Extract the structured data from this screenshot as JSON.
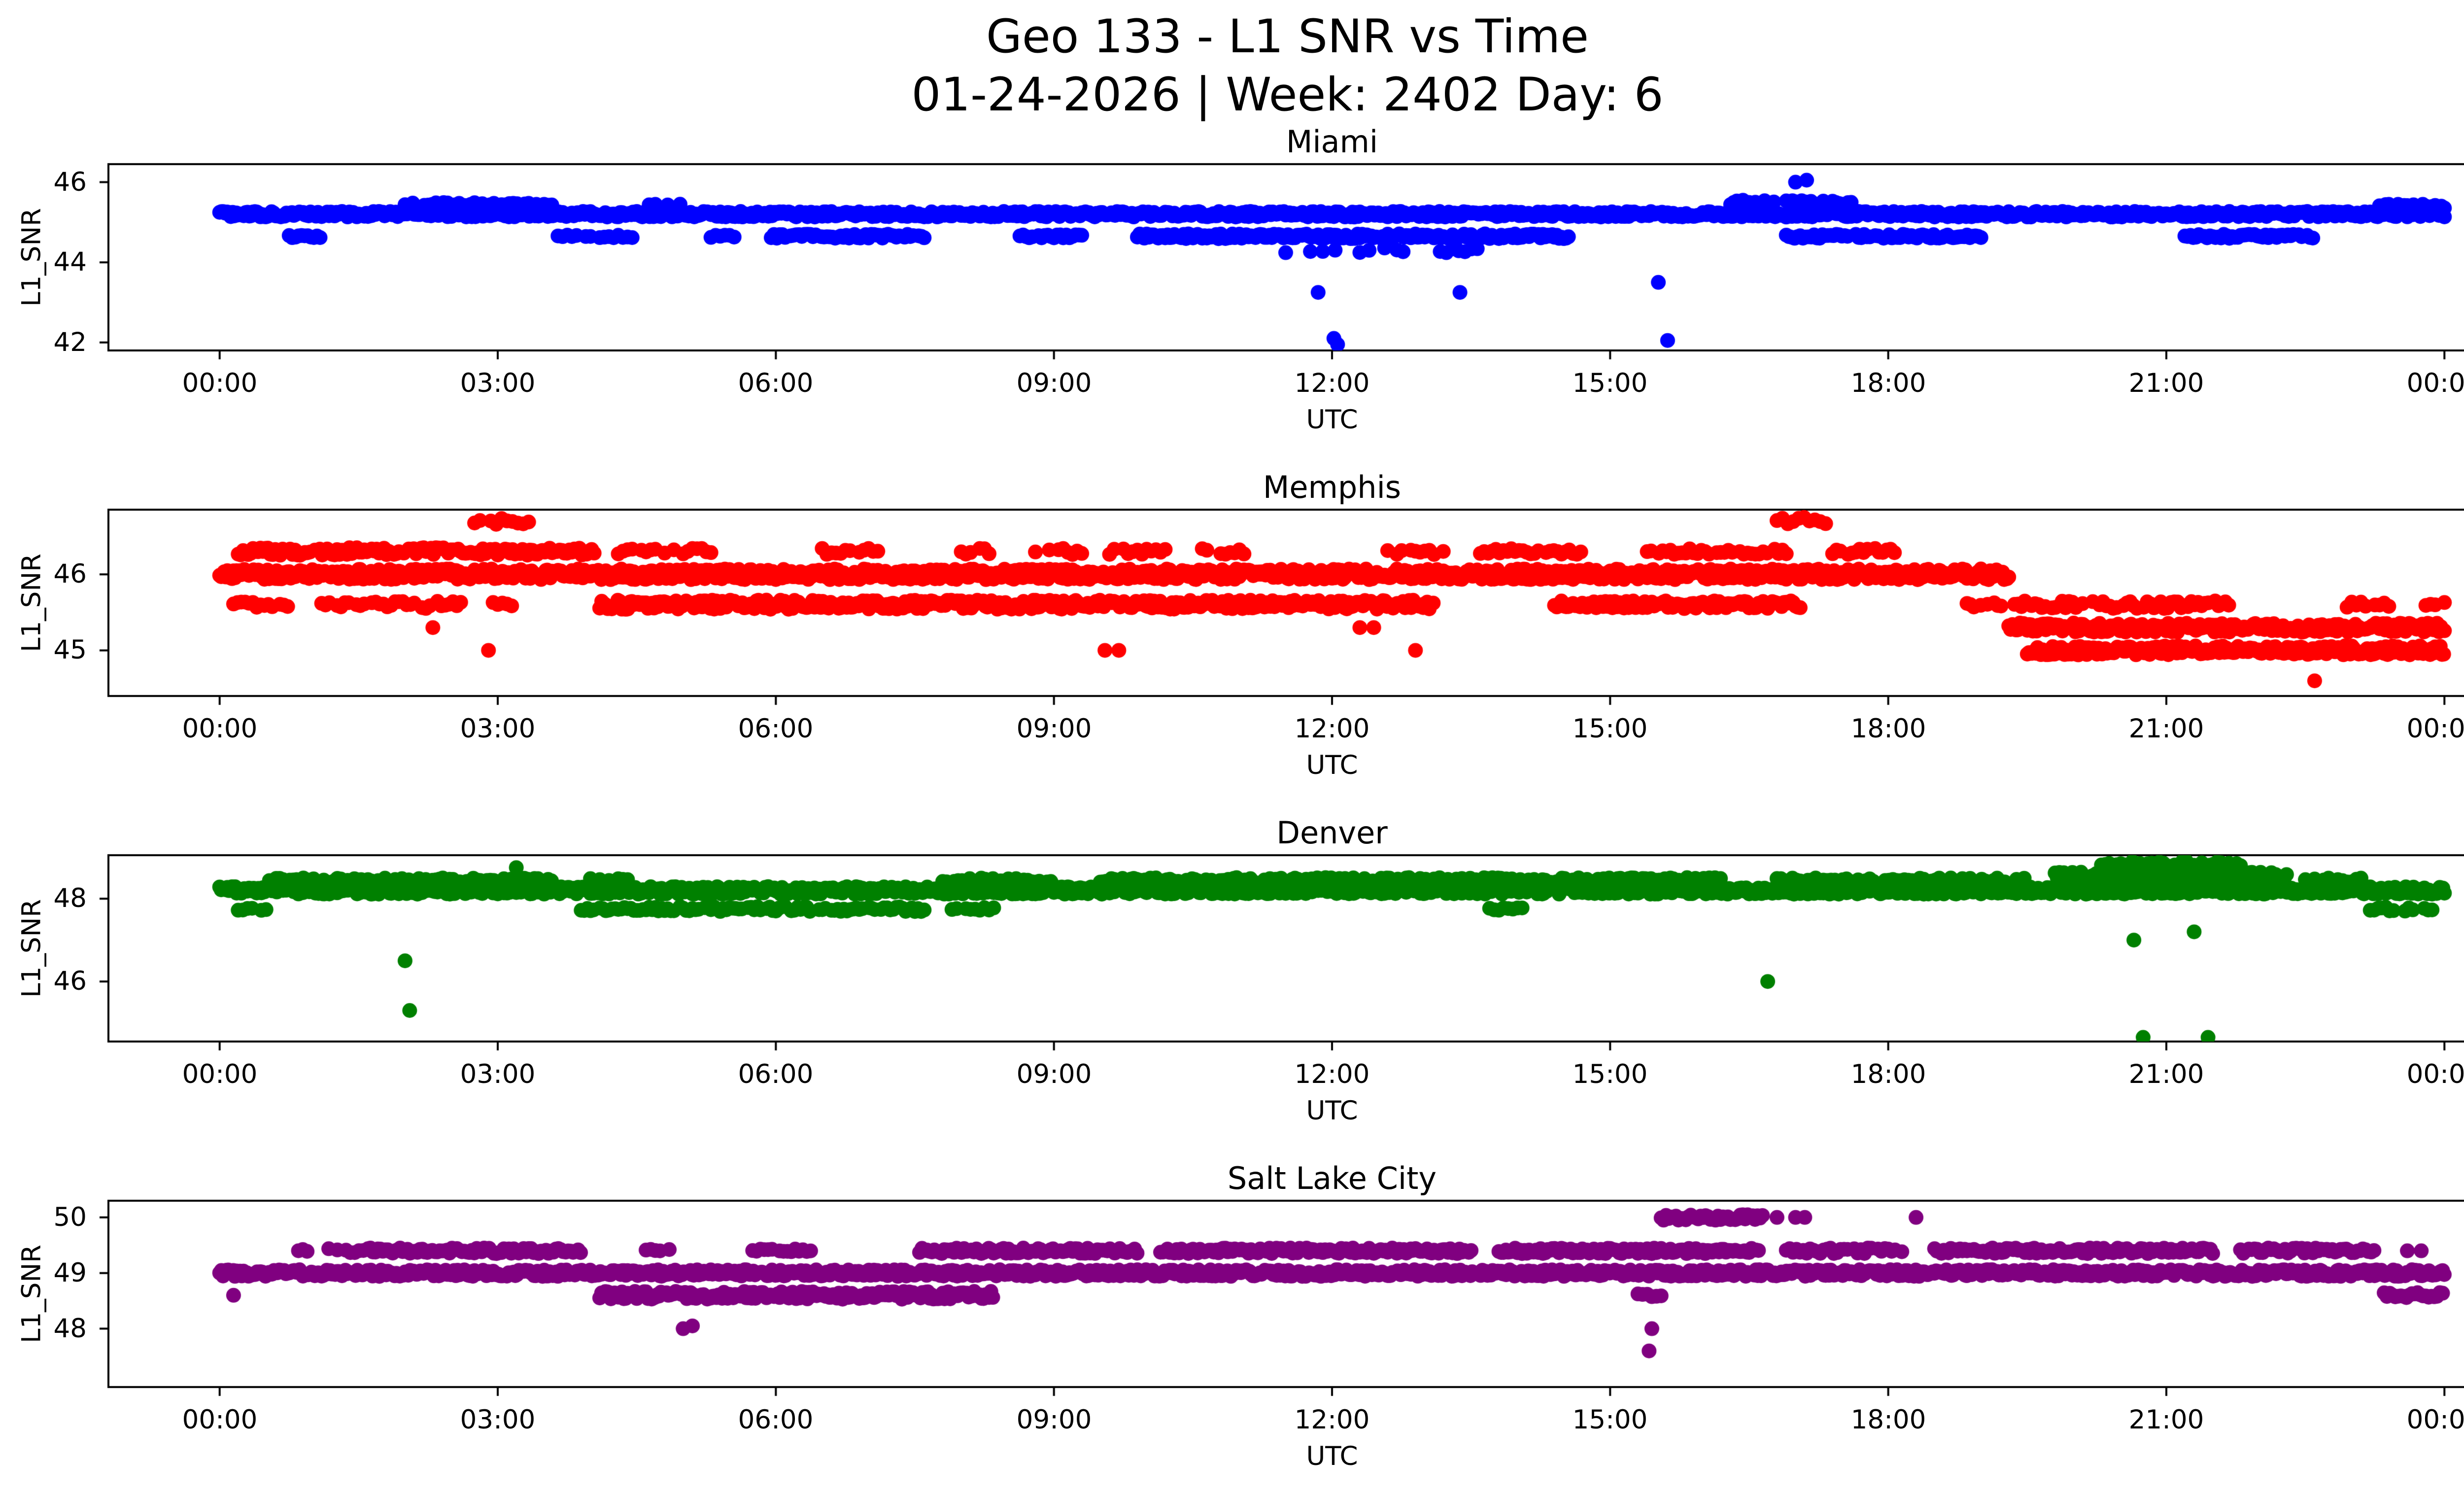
{
  "figure": {
    "title_line1": "Geo 133 - L1 SNR vs Time",
    "title_line2": "01-24-2026 | Week: 2402 Day: 6"
  },
  "chart_data": {
    "type": "scatter",
    "xlabel": "UTC",
    "ylabel": "L1_SNR",
    "x_range_hours": [
      0,
      24
    ],
    "x_ticks": [
      "00:00",
      "03:00",
      "06:00",
      "09:00",
      "12:00",
      "15:00",
      "18:00",
      "21:00",
      "00:00"
    ],
    "x_tick_hours": [
      0,
      3,
      6,
      9,
      12,
      15,
      18,
      21,
      24
    ],
    "subplots": [
      {
        "title": "Miami",
        "color": "#0000ff",
        "ylim": [
          41.8,
          46.45
        ],
        "y_ticks": [
          46,
          44,
          42
        ],
        "segments": [
          {
            "snr": 45.2,
            "h0": 0.0,
            "h1": 24.0,
            "step_min": 1.2,
            "jitter": 0.07,
            "density": 1
          },
          {
            "snr": 45.45,
            "h0": 2.0,
            "h1": 3.6,
            "step_min": 2.5,
            "jitter": 0.04,
            "density": 0.85
          },
          {
            "snr": 45.45,
            "h0": 4.5,
            "h1": 5.0,
            "step_min": 4,
            "jitter": 0.03,
            "density": 0.7
          },
          {
            "snr": 45.5,
            "h0": 16.3,
            "h1": 17.6,
            "step_min": 2,
            "jitter": 0.06,
            "density": 0.9
          },
          {
            "snr": 45.4,
            "h0": 23.3,
            "h1": 24.0,
            "step_min": 2,
            "jitter": 0.05,
            "density": 0.9
          },
          {
            "snr": 44.65,
            "h0": 0.75,
            "h1": 1.1,
            "step_min": 2,
            "jitter": 0.04,
            "density": 1
          },
          {
            "snr": 44.65,
            "h0": 3.6,
            "h1": 4.5,
            "step_min": 3,
            "jitter": 0.04,
            "density": 0.8
          },
          {
            "snr": 44.65,
            "h0": 5.3,
            "h1": 5.55,
            "step_min": 3,
            "jitter": 0.03,
            "density": 0.9
          },
          {
            "snr": 44.65,
            "h0": 5.95,
            "h1": 7.6,
            "step_min": 1.8,
            "jitter": 0.05,
            "density": 0.95
          },
          {
            "snr": 44.65,
            "h0": 8.6,
            "h1": 9.3,
            "step_min": 2,
            "jitter": 0.04,
            "density": 0.9
          },
          {
            "snr": 44.65,
            "h0": 9.9,
            "h1": 14.55,
            "step_min": 1.5,
            "jitter": 0.06,
            "density": 1
          },
          {
            "snr": 44.3,
            "h0": 11.5,
            "h1": 13.6,
            "step_min": 4,
            "jitter": 0.06,
            "density": 0.5
          },
          {
            "snr": 44.65,
            "h0": 16.9,
            "h1": 19.0,
            "step_min": 1.8,
            "jitter": 0.05,
            "density": 0.95
          },
          {
            "snr": 44.65,
            "h0": 21.2,
            "h1": 22.6,
            "step_min": 1.8,
            "jitter": 0.05,
            "density": 0.95
          }
        ],
        "points": [
          [
            11.85,
            43.25
          ],
          [
            12.02,
            42.1
          ],
          [
            12.06,
            41.95
          ],
          [
            13.38,
            43.25
          ],
          [
            15.52,
            43.5
          ],
          [
            15.62,
            42.05
          ],
          [
            17.0,
            46.0
          ],
          [
            17.12,
            46.05
          ],
          [
            12.4,
            44.3
          ]
        ]
      },
      {
        "title": "Memphis",
        "color": "#ff0000",
        "ylim": [
          44.4,
          46.85
        ],
        "y_ticks": [
          46,
          45
        ],
        "segments": [
          {
            "snr": 46.0,
            "h0": 0.0,
            "h1": 19.3,
            "step_min": 1.0,
            "jitter": 0.07,
            "density": 1
          },
          {
            "snr": 46.3,
            "h0": 0.2,
            "h1": 4.05,
            "step_min": 1.6,
            "jitter": 0.05,
            "density": 0.95
          },
          {
            "snr": 46.3,
            "h0": 4.3,
            "h1": 5.3,
            "step_min": 3,
            "jitter": 0.04,
            "density": 0.8
          },
          {
            "snr": 46.3,
            "h0": 6.5,
            "h1": 7.1,
            "step_min": 3,
            "jitter": 0.04,
            "density": 0.8
          },
          {
            "snr": 46.3,
            "h0": 8.0,
            "h1": 8.35,
            "step_min": 3,
            "jitter": 0.04,
            "density": 0.8
          },
          {
            "snr": 46.3,
            "h0": 8.8,
            "h1": 9.3,
            "step_min": 3,
            "jitter": 0.04,
            "density": 0.8
          },
          {
            "snr": 46.3,
            "h0": 9.6,
            "h1": 10.2,
            "step_min": 3,
            "jitter": 0.04,
            "density": 0.8
          },
          {
            "snr": 46.3,
            "h0": 10.6,
            "h1": 11.1,
            "step_min": 3,
            "jitter": 0.04,
            "density": 0.8
          },
          {
            "snr": 46.3,
            "h0": 12.6,
            "h1": 13.2,
            "step_min": 3,
            "jitter": 0.04,
            "density": 0.8
          },
          {
            "snr": 46.3,
            "h0": 13.6,
            "h1": 14.7,
            "step_min": 2.5,
            "jitter": 0.04,
            "density": 0.85
          },
          {
            "snr": 46.3,
            "h0": 15.4,
            "h1": 16.9,
            "step_min": 2.5,
            "jitter": 0.04,
            "density": 0.85
          },
          {
            "snr": 46.3,
            "h0": 17.4,
            "h1": 18.1,
            "step_min": 2.5,
            "jitter": 0.04,
            "density": 0.85
          },
          {
            "snr": 46.7,
            "h0": 2.75,
            "h1": 3.35,
            "step_min": 3.5,
            "jitter": 0.05,
            "density": 0.9
          },
          {
            "snr": 46.7,
            "h0": 16.8,
            "h1": 17.35,
            "step_min": 3.5,
            "jitter": 0.05,
            "density": 0.9
          },
          {
            "snr": 45.6,
            "h0": 0.15,
            "h1": 0.75,
            "step_min": 2.5,
            "jitter": 0.04,
            "density": 0.9
          },
          {
            "snr": 45.6,
            "h0": 1.1,
            "h1": 2.6,
            "step_min": 2.5,
            "jitter": 0.05,
            "density": 0.85
          },
          {
            "snr": 45.6,
            "h0": 2.95,
            "h1": 3.15,
            "step_min": 3,
            "jitter": 0.03,
            "density": 0.9
          },
          {
            "snr": 45.6,
            "h0": 4.1,
            "h1": 13.1,
            "step_min": 1.3,
            "jitter": 0.06,
            "density": 1
          },
          {
            "snr": 45.6,
            "h0": 14.4,
            "h1": 17.05,
            "step_min": 1.5,
            "jitter": 0.05,
            "density": 1
          },
          {
            "snr": 45.6,
            "h0": 18.85,
            "h1": 21.7,
            "step_min": 2.2,
            "jitter": 0.05,
            "density": 0.85
          },
          {
            "snr": 45.6,
            "h0": 22.9,
            "h1": 23.4,
            "step_min": 3,
            "jitter": 0.04,
            "density": 0.8
          },
          {
            "snr": 45.6,
            "h0": 23.8,
            "h1": 24.0,
            "step_min": 3,
            "jitter": 0.04,
            "density": 0.9
          },
          {
            "snr": 45.3,
            "h0": 19.3,
            "h1": 24.0,
            "step_min": 1.2,
            "jitter": 0.06,
            "density": 1
          },
          {
            "snr": 45.0,
            "h0": 19.5,
            "h1": 24.0,
            "step_min": 1.1,
            "jitter": 0.06,
            "density": 1
          }
        ],
        "points": [
          [
            2.9,
            45.0
          ],
          [
            9.55,
            45.0
          ],
          [
            9.7,
            45.0
          ],
          [
            12.9,
            45.0
          ],
          [
            2.3,
            45.3
          ],
          [
            12.3,
            45.3
          ],
          [
            12.45,
            45.3
          ],
          [
            22.6,
            44.6
          ]
        ]
      },
      {
        "title": "Denver",
        "color": "#008000",
        "ylim": [
          44.55,
          49.05
        ],
        "y_ticks": [
          48,
          46
        ],
        "segments": [
          {
            "snr": 48.2,
            "h0": 0.0,
            "h1": 24.0,
            "step_min": 1.0,
            "jitter": 0.09,
            "density": 1
          },
          {
            "snr": 48.45,
            "h0": 0.5,
            "h1": 3.6,
            "step_min": 2.2,
            "jitter": 0.05,
            "density": 0.85
          },
          {
            "snr": 48.45,
            "h0": 4.0,
            "h1": 4.4,
            "step_min": 3,
            "jitter": 0.04,
            "density": 0.7
          },
          {
            "snr": 48.45,
            "h0": 7.8,
            "h1": 9.0,
            "step_min": 2.5,
            "jitter": 0.05,
            "density": 0.8
          },
          {
            "snr": 48.45,
            "h0": 9.5,
            "h1": 16.2,
            "step_min": 1.8,
            "jitter": 0.06,
            "density": 0.9
          },
          {
            "snr": 48.45,
            "h0": 16.8,
            "h1": 19.5,
            "step_min": 2.5,
            "jitter": 0.05,
            "density": 0.8
          },
          {
            "snr": 48.55,
            "h0": 19.8,
            "h1": 22.3,
            "step_min": 1.4,
            "jitter": 0.1,
            "density": 1
          },
          {
            "snr": 48.85,
            "h0": 20.3,
            "h1": 21.8,
            "step_min": 2.5,
            "jitter": 0.06,
            "density": 0.9
          },
          {
            "snr": 48.45,
            "h0": 22.5,
            "h1": 23.1,
            "step_min": 3,
            "jitter": 0.05,
            "density": 0.8
          },
          {
            "snr": 47.75,
            "h0": 0.15,
            "h1": 0.5,
            "step_min": 3,
            "jitter": 0.04,
            "density": 0.8
          },
          {
            "snr": 47.75,
            "h0": 3.9,
            "h1": 7.6,
            "step_min": 2.0,
            "jitter": 0.06,
            "density": 0.9
          },
          {
            "snr": 47.75,
            "h0": 7.9,
            "h1": 8.4,
            "step_min": 3,
            "jitter": 0.04,
            "density": 0.8
          },
          {
            "snr": 47.75,
            "h0": 13.7,
            "h1": 14.1,
            "step_min": 3,
            "jitter": 0.04,
            "density": 0.8
          },
          {
            "snr": 47.75,
            "h0": 23.2,
            "h1": 23.9,
            "step_min": 2.5,
            "jitter": 0.05,
            "density": 0.85
          }
        ],
        "points": [
          [
            2.0,
            46.5
          ],
          [
            2.05,
            45.3
          ],
          [
            3.2,
            48.75
          ],
          [
            16.7,
            46.0
          ],
          [
            20.65,
            47.0
          ],
          [
            20.75,
            44.65
          ],
          [
            21.3,
            47.2
          ],
          [
            21.45,
            44.65
          ]
        ]
      },
      {
        "title": "Salt Lake City",
        "color": "#800080",
        "ylim": [
          46.95,
          50.3
        ],
        "y_ticks": [
          50,
          49,
          48
        ],
        "segments": [
          {
            "snr": 49.0,
            "h0": 0.0,
            "h1": 24.0,
            "step_min": 1.1,
            "jitter": 0.06,
            "density": 1
          },
          {
            "snr": 49.4,
            "h0": 0.85,
            "h1": 1.6,
            "step_min": 2.8,
            "jitter": 0.04,
            "density": 0.8
          },
          {
            "snr": 49.4,
            "h0": 1.6,
            "h1": 3.9,
            "step_min": 1.6,
            "jitter": 0.05,
            "density": 1
          },
          {
            "snr": 49.4,
            "h0": 4.5,
            "h1": 4.85,
            "step_min": 3,
            "jitter": 0.04,
            "density": 0.8
          },
          {
            "snr": 49.4,
            "h0": 5.75,
            "h1": 6.4,
            "step_min": 2.5,
            "jitter": 0.04,
            "density": 0.85
          },
          {
            "snr": 49.4,
            "h0": 7.55,
            "h1": 9.9,
            "step_min": 1.6,
            "jitter": 0.05,
            "density": 1
          },
          {
            "snr": 49.4,
            "h0": 10.15,
            "h1": 13.5,
            "step_min": 1.5,
            "jitter": 0.05,
            "density": 1
          },
          {
            "snr": 49.4,
            "h0": 13.8,
            "h1": 16.6,
            "step_min": 1.5,
            "jitter": 0.05,
            "density": 1
          },
          {
            "snr": 49.4,
            "h0": 16.9,
            "h1": 18.2,
            "step_min": 2.2,
            "jitter": 0.05,
            "density": 0.85
          },
          {
            "snr": 49.4,
            "h0": 18.5,
            "h1": 21.5,
            "step_min": 1.5,
            "jitter": 0.05,
            "density": 1
          },
          {
            "snr": 49.4,
            "h0": 21.8,
            "h1": 23.3,
            "step_min": 1.8,
            "jitter": 0.05,
            "density": 0.95
          },
          {
            "snr": 48.6,
            "h0": 4.1,
            "h1": 8.35,
            "step_min": 1.2,
            "jitter": 0.07,
            "density": 1
          },
          {
            "snr": 48.6,
            "h0": 15.3,
            "h1": 15.55,
            "step_min": 3,
            "jitter": 0.04,
            "density": 0.9
          },
          {
            "snr": 48.6,
            "h0": 23.35,
            "h1": 24.0,
            "step_min": 1.8,
            "jitter": 0.05,
            "density": 1
          },
          {
            "snr": 50.0,
            "h0": 15.55,
            "h1": 16.65,
            "step_min": 1.6,
            "jitter": 0.05,
            "density": 1
          }
        ],
        "points": [
          [
            0.15,
            48.6
          ],
          [
            5.0,
            48.0
          ],
          [
            5.1,
            48.05
          ],
          [
            15.45,
            48.0
          ],
          [
            15.42,
            47.6
          ],
          [
            16.8,
            50.0
          ],
          [
            17.0,
            50.0
          ],
          [
            17.1,
            50.0
          ],
          [
            18.3,
            50.0
          ],
          [
            23.6,
            49.4
          ],
          [
            23.75,
            49.4
          ]
        ]
      }
    ]
  }
}
